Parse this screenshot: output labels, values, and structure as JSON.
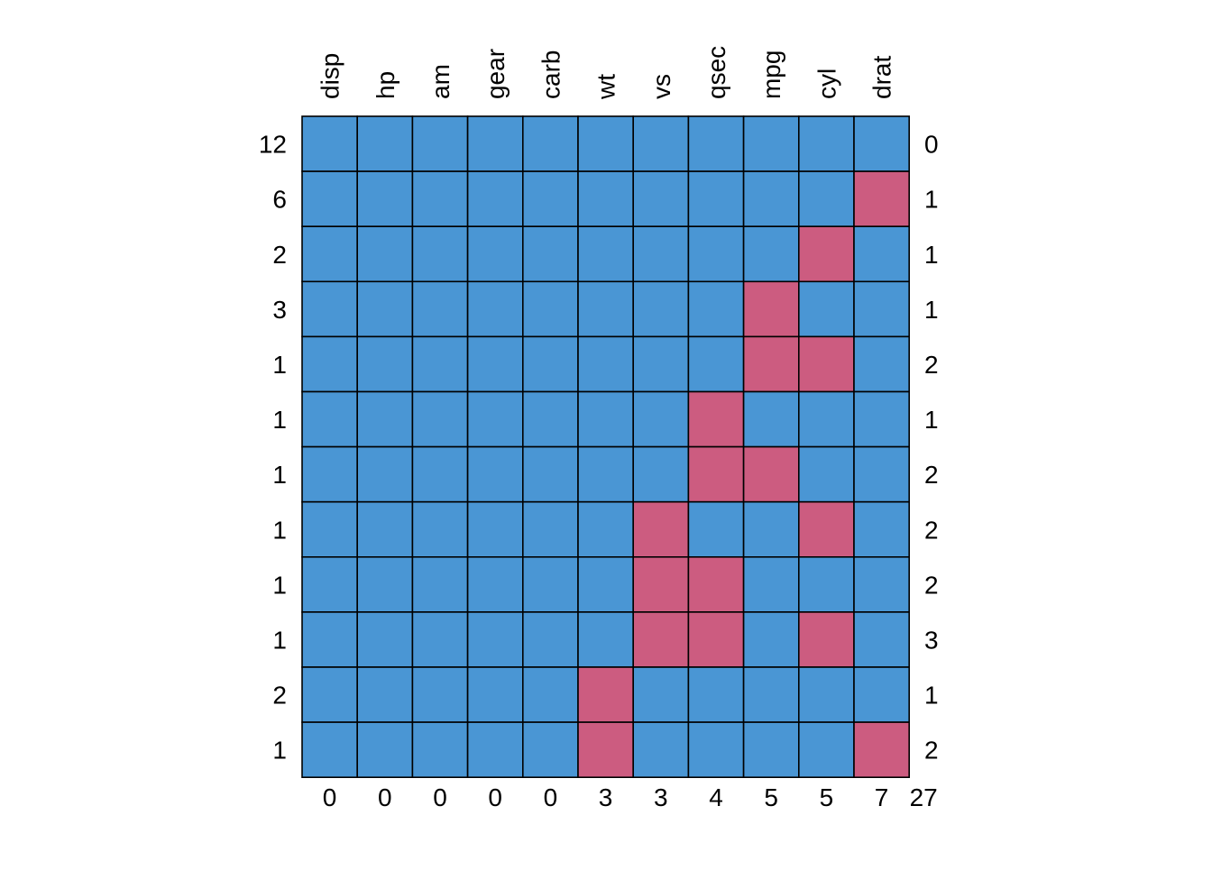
{
  "chart_data": {
    "type": "heatmap",
    "subtype": "missing-data-pattern",
    "columns": [
      "disp",
      "hp",
      "am",
      "gear",
      "carb",
      "wt",
      "vs",
      "qsec",
      "mpg",
      "cyl",
      "drat"
    ],
    "row_counts": [
      "12",
      "6",
      "2",
      "3",
      "1",
      "1",
      "1",
      "1",
      "1",
      "1",
      "2",
      "1"
    ],
    "row_missing_totals": [
      "0",
      "1",
      "1",
      "1",
      "2",
      "1",
      "2",
      "2",
      "2",
      "3",
      "1",
      "2"
    ],
    "column_missing_totals": [
      "0",
      "0",
      "0",
      "0",
      "0",
      "3",
      "3",
      "4",
      "5",
      "5",
      "7"
    ],
    "total_missing": "27",
    "patterns": [
      [
        1,
        1,
        1,
        1,
        1,
        1,
        1,
        1,
        1,
        1,
        1
      ],
      [
        1,
        1,
        1,
        1,
        1,
        1,
        1,
        1,
        1,
        1,
        0
      ],
      [
        1,
        1,
        1,
        1,
        1,
        1,
        1,
        1,
        1,
        0,
        1
      ],
      [
        1,
        1,
        1,
        1,
        1,
        1,
        1,
        1,
        0,
        1,
        1
      ],
      [
        1,
        1,
        1,
        1,
        1,
        1,
        1,
        1,
        0,
        0,
        1
      ],
      [
        1,
        1,
        1,
        1,
        1,
        1,
        1,
        0,
        1,
        1,
        1
      ],
      [
        1,
        1,
        1,
        1,
        1,
        1,
        1,
        0,
        0,
        1,
        1
      ],
      [
        1,
        1,
        1,
        1,
        1,
        1,
        0,
        1,
        1,
        0,
        1
      ],
      [
        1,
        1,
        1,
        1,
        1,
        1,
        0,
        0,
        1,
        1,
        1
      ],
      [
        1,
        1,
        1,
        1,
        1,
        1,
        0,
        0,
        1,
        0,
        1
      ],
      [
        1,
        1,
        1,
        1,
        1,
        0,
        1,
        1,
        1,
        1,
        1
      ],
      [
        1,
        1,
        1,
        1,
        1,
        0,
        1,
        1,
        1,
        1,
        0
      ]
    ],
    "colors": {
      "observed": "#4A96D4",
      "missing": "#CC5C80",
      "border": "#000000"
    }
  }
}
